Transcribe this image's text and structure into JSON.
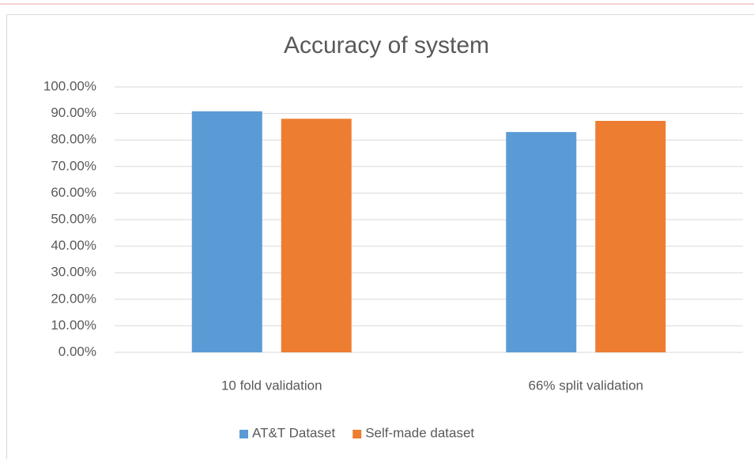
{
  "chart_data": {
    "type": "bar",
    "title": "Accuracy of system",
    "categories": [
      "10 fold validation",
      "66% split validation"
    ],
    "series": [
      {
        "name": "AT&T Dataset",
        "color": "#5b9bd5",
        "values": [
          90.8,
          83.0
        ]
      },
      {
        "name": "Self-made dataset",
        "color": "#ed7d31",
        "values": [
          88.0,
          87.2
        ]
      }
    ],
    "ylim": [
      0,
      100
    ],
    "yticks": [
      {
        "value": 0,
        "label": "0.00%"
      },
      {
        "value": 10,
        "label": "10.00%"
      },
      {
        "value": 20,
        "label": "20.00%"
      },
      {
        "value": 30,
        "label": "30.00%"
      },
      {
        "value": 40,
        "label": "40.00%"
      },
      {
        "value": 50,
        "label": "50.00%"
      },
      {
        "value": 60,
        "label": "60.00%"
      },
      {
        "value": 70,
        "label": "70.00%"
      },
      {
        "value": 80,
        "label": "80.00%"
      },
      {
        "value": 90,
        "label": "90.00%"
      },
      {
        "value": 100,
        "label": "100.00%"
      }
    ],
    "grid": true,
    "legend": "bottom"
  }
}
